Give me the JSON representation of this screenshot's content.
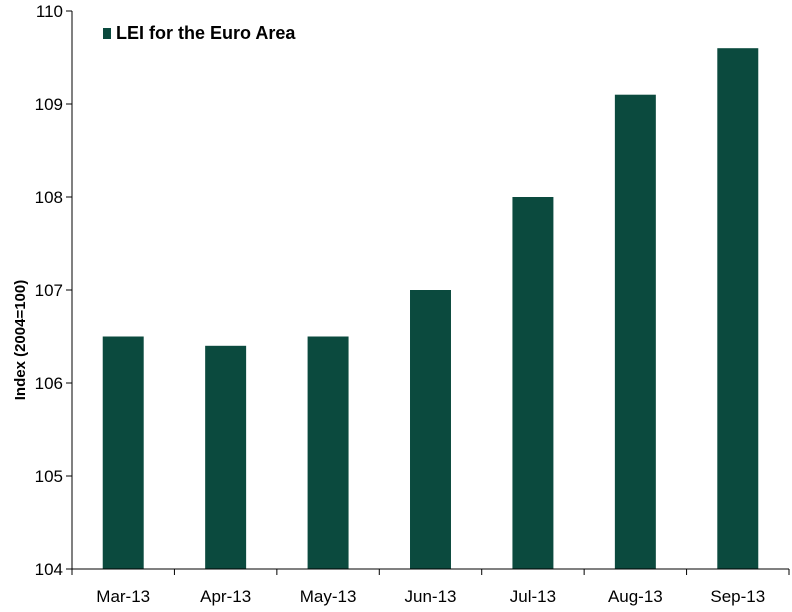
{
  "chart_data": {
    "type": "bar",
    "categories": [
      "Mar-13",
      "Apr-13",
      "May-13",
      "Jun-13",
      "Jul-13",
      "Aug-13",
      "Sep-13"
    ],
    "series": [
      {
        "name": "LEI for the Euro Area",
        "values": [
          106.5,
          106.4,
          106.5,
          107.0,
          108.0,
          109.1,
          109.6
        ]
      }
    ],
    "ylabel": "Index (2004=100)",
    "ylim": [
      104,
      110
    ],
    "yticks": [
      104,
      105,
      106,
      107,
      108,
      109,
      110
    ],
    "grid": false,
    "legend": "top-left",
    "bar_color": "#0b4a3e"
  }
}
